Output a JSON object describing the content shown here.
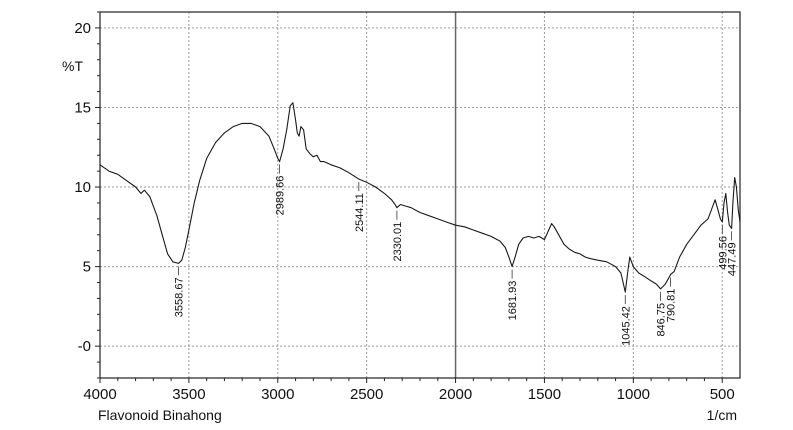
{
  "chart_data": {
    "type": "line",
    "ylabel": "%T",
    "xunit": "1/cm",
    "caption": "Flavonoid Binahong",
    "xlim": [
      4000,
      400
    ],
    "ylim": [
      -2,
      21
    ],
    "x_ticks": [
      4000,
      3500,
      3000,
      2500,
      2000,
      1500,
      1000,
      500
    ],
    "y_ticks": [
      20,
      15,
      10,
      5,
      0
    ],
    "y_tick_labels": [
      "20",
      "15",
      "10",
      "5",
      "-0"
    ],
    "grid": true,
    "series": [
      {
        "points": [
          [
            4000,
            11.4
          ],
          [
            3950,
            11.0
          ],
          [
            3900,
            10.8
          ],
          [
            3850,
            10.4
          ],
          [
            3800,
            10.0
          ],
          [
            3770,
            9.6
          ],
          [
            3750,
            9.8
          ],
          [
            3720,
            9.4
          ],
          [
            3700,
            8.8
          ],
          [
            3680,
            8.2
          ],
          [
            3650,
            7.0
          ],
          [
            3620,
            5.8
          ],
          [
            3590,
            5.3
          ],
          [
            3558.67,
            5.2
          ],
          [
            3540,
            5.4
          ],
          [
            3520,
            6.2
          ],
          [
            3500,
            7.3
          ],
          [
            3470,
            9.0
          ],
          [
            3440,
            10.4
          ],
          [
            3400,
            11.8
          ],
          [
            3350,
            12.8
          ],
          [
            3300,
            13.4
          ],
          [
            3250,
            13.8
          ],
          [
            3200,
            14.0
          ],
          [
            3150,
            14.0
          ],
          [
            3100,
            13.8
          ],
          [
            3050,
            13.2
          ],
          [
            3020,
            12.4
          ],
          [
            3000,
            11.8
          ],
          [
            2989.66,
            11.6
          ],
          [
            2970,
            12.4
          ],
          [
            2950,
            13.6
          ],
          [
            2930,
            15.1
          ],
          [
            2915,
            15.3
          ],
          [
            2900,
            14.2
          ],
          [
            2890,
            13.4
          ],
          [
            2880,
            13.2
          ],
          [
            2870,
            13.8
          ],
          [
            2855,
            13.6
          ],
          [
            2840,
            12.4
          ],
          [
            2820,
            12.1
          ],
          [
            2800,
            11.9
          ],
          [
            2780,
            12.0
          ],
          [
            2760,
            11.6
          ],
          [
            2740,
            11.6
          ],
          [
            2700,
            11.4
          ],
          [
            2650,
            11.2
          ],
          [
            2600,
            10.9
          ],
          [
            2544.11,
            10.5
          ],
          [
            2500,
            10.3
          ],
          [
            2450,
            10.0
          ],
          [
            2400,
            9.6
          ],
          [
            2360,
            9.2
          ],
          [
            2340,
            8.9
          ],
          [
            2330.01,
            8.7
          ],
          [
            2310,
            8.9
          ],
          [
            2280,
            8.8
          ],
          [
            2250,
            8.7
          ],
          [
            2200,
            8.4
          ],
          [
            2150,
            8.2
          ],
          [
            2100,
            8.0
          ],
          [
            2050,
            7.8
          ],
          [
            2000,
            7.6
          ],
          [
            1950,
            7.5
          ],
          [
            1900,
            7.3
          ],
          [
            1850,
            7.1
          ],
          [
            1800,
            6.9
          ],
          [
            1750,
            6.6
          ],
          [
            1720,
            6.2
          ],
          [
            1700,
            5.6
          ],
          [
            1681.93,
            5.0
          ],
          [
            1665,
            5.6
          ],
          [
            1645,
            6.4
          ],
          [
            1620,
            6.8
          ],
          [
            1590,
            6.9
          ],
          [
            1560,
            6.8
          ],
          [
            1530,
            6.9
          ],
          [
            1500,
            6.7
          ],
          [
            1480,
            7.2
          ],
          [
            1460,
            7.7
          ],
          [
            1445,
            7.5
          ],
          [
            1420,
            7.0
          ],
          [
            1390,
            6.4
          ],
          [
            1360,
            6.1
          ],
          [
            1330,
            5.9
          ],
          [
            1300,
            5.8
          ],
          [
            1270,
            5.6
          ],
          [
            1240,
            5.5
          ],
          [
            1200,
            5.4
          ],
          [
            1150,
            5.3
          ],
          [
            1100,
            5.0
          ],
          [
            1070,
            4.6
          ],
          [
            1045.42,
            3.4
          ],
          [
            1030,
            4.8
          ],
          [
            1020,
            5.6
          ],
          [
            1000,
            5.0
          ],
          [
            970,
            4.6
          ],
          [
            940,
            4.4
          ],
          [
            900,
            4.1
          ],
          [
            870,
            3.9
          ],
          [
            846.75,
            3.6
          ],
          [
            820,
            3.9
          ],
          [
            800,
            4.3
          ],
          [
            790.81,
            4.5
          ],
          [
            770,
            4.7
          ],
          [
            740,
            5.6
          ],
          [
            700,
            6.4
          ],
          [
            660,
            7.0
          ],
          [
            620,
            7.6
          ],
          [
            580,
            8.0
          ],
          [
            560,
            8.6
          ],
          [
            540,
            9.2
          ],
          [
            525,
            8.6
          ],
          [
            510,
            8.0
          ],
          [
            499.56,
            7.8
          ],
          [
            490,
            9.0
          ],
          [
            480,
            9.6
          ],
          [
            470,
            8.4
          ],
          [
            460,
            7.6
          ],
          [
            447.49,
            7.4
          ],
          [
            440,
            9.0
          ],
          [
            430,
            10.6
          ],
          [
            420,
            10.0
          ],
          [
            410,
            8.6
          ],
          [
            400,
            7.8
          ]
        ]
      }
    ],
    "peaks": [
      {
        "x": 3558.67,
        "label": "3558.67"
      },
      {
        "x": 2989.66,
        "label": "2989.66"
      },
      {
        "x": 2544.11,
        "label": "2544.11"
      },
      {
        "x": 2330.01,
        "label": "2330.01"
      },
      {
        "x": 1681.93,
        "label": "1681.93"
      },
      {
        "x": 1045.42,
        "label": "1045.42"
      },
      {
        "x": 846.75,
        "label": "846.75"
      },
      {
        "x": 790.81,
        "label": "790.81"
      },
      {
        "x": 499.56,
        "label": "499.56"
      },
      {
        "x": 447.49,
        "label": "447.49"
      }
    ]
  }
}
